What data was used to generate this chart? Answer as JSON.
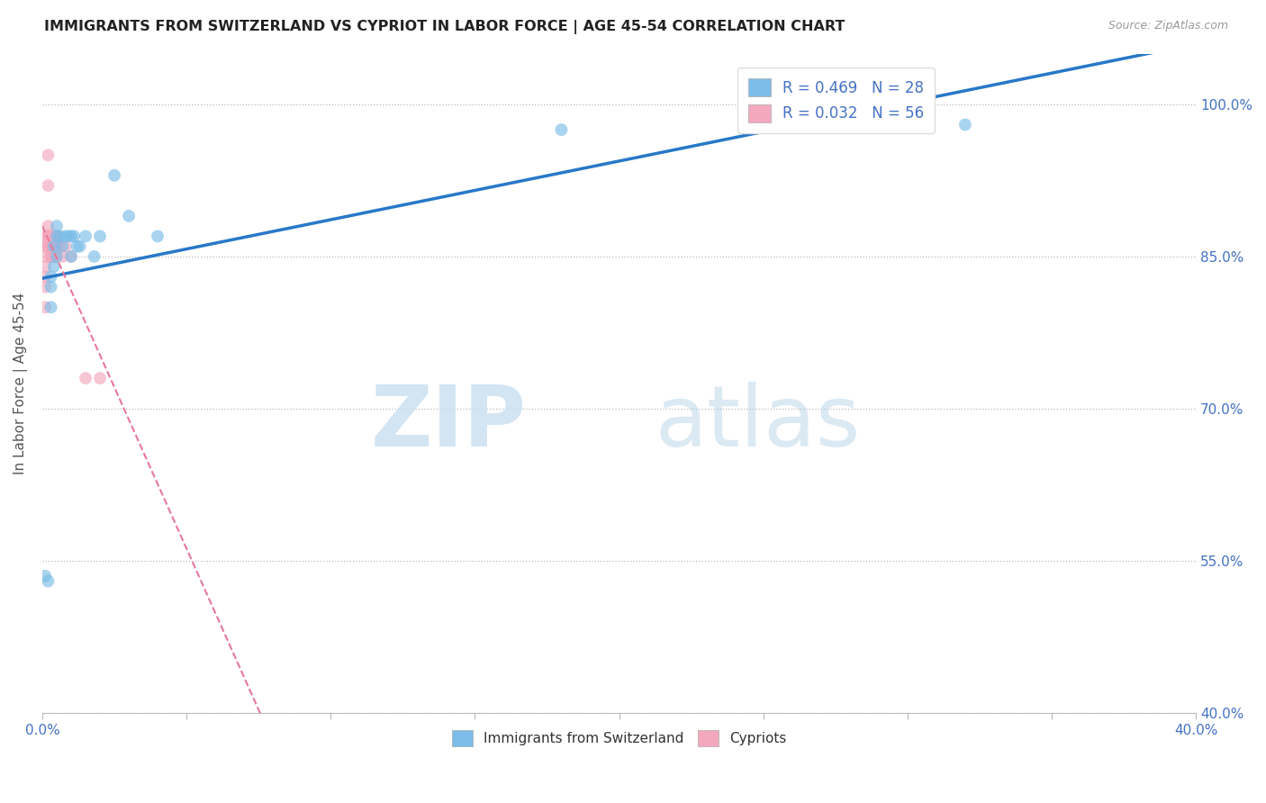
{
  "title": "IMMIGRANTS FROM SWITZERLAND VS CYPRIOT IN LABOR FORCE | AGE 45-54 CORRELATION CHART",
  "source": "Source: ZipAtlas.com",
  "ylabel": "In Labor Force | Age 45-54",
  "xlim": [
    0.0,
    0.4
  ],
  "ylim": [
    0.4,
    1.05
  ],
  "xtick_positions": [
    0.0,
    0.05,
    0.1,
    0.15,
    0.2,
    0.25,
    0.3,
    0.35,
    0.4
  ],
  "ytick_positions": [
    0.4,
    0.55,
    0.7,
    0.85,
    1.0
  ],
  "yticklabels": [
    "40.0%",
    "55.0%",
    "70.0%",
    "85.0%",
    "100.0%"
  ],
  "r_swiss": 0.469,
  "n_swiss": 28,
  "r_cypriot": 0.032,
  "n_cypriot": 56,
  "swiss_color": "#7bbde8",
  "cypriot_color": "#f4a8be",
  "swiss_line_color": "#2878c8",
  "cypriot_line_color": "#e87898",
  "swiss_x": [
    0.001,
    0.002,
    0.003,
    0.003,
    0.003,
    0.004,
    0.004,
    0.005,
    0.005,
    0.005,
    0.006,
    0.007,
    0.008,
    0.009,
    0.01,
    0.01,
    0.011,
    0.012,
    0.013,
    0.015,
    0.018,
    0.02,
    0.025,
    0.03,
    0.04,
    0.18,
    0.29,
    0.32
  ],
  "swiss_y": [
    0.535,
    0.53,
    0.8,
    0.82,
    0.83,
    0.84,
    0.86,
    0.85,
    0.87,
    0.88,
    0.87,
    0.86,
    0.87,
    0.87,
    0.87,
    0.85,
    0.87,
    0.86,
    0.86,
    0.87,
    0.85,
    0.87,
    0.93,
    0.89,
    0.87,
    0.975,
    0.98,
    0.98
  ],
  "cypriot_x": [
    0.001,
    0.001,
    0.001,
    0.001,
    0.001,
    0.001,
    0.001,
    0.002,
    0.002,
    0.002,
    0.002,
    0.002,
    0.002,
    0.002,
    0.002,
    0.002,
    0.002,
    0.002,
    0.003,
    0.003,
    0.003,
    0.003,
    0.003,
    0.003,
    0.003,
    0.003,
    0.003,
    0.003,
    0.003,
    0.003,
    0.003,
    0.003,
    0.003,
    0.003,
    0.003,
    0.004,
    0.004,
    0.004,
    0.004,
    0.004,
    0.004,
    0.004,
    0.004,
    0.004,
    0.004,
    0.005,
    0.005,
    0.005,
    0.005,
    0.005,
    0.006,
    0.007,
    0.008,
    0.01,
    0.015,
    0.02
  ],
  "cypriot_y": [
    0.87,
    0.86,
    0.85,
    0.84,
    0.83,
    0.82,
    0.8,
    0.95,
    0.92,
    0.88,
    0.87,
    0.87,
    0.87,
    0.86,
    0.86,
    0.86,
    0.86,
    0.86,
    0.87,
    0.87,
    0.87,
    0.87,
    0.87,
    0.86,
    0.86,
    0.86,
    0.86,
    0.86,
    0.86,
    0.86,
    0.86,
    0.85,
    0.85,
    0.85,
    0.85,
    0.87,
    0.87,
    0.87,
    0.86,
    0.86,
    0.86,
    0.86,
    0.85,
    0.85,
    0.85,
    0.87,
    0.86,
    0.86,
    0.86,
    0.85,
    0.86,
    0.85,
    0.86,
    0.85,
    0.73,
    0.73
  ]
}
